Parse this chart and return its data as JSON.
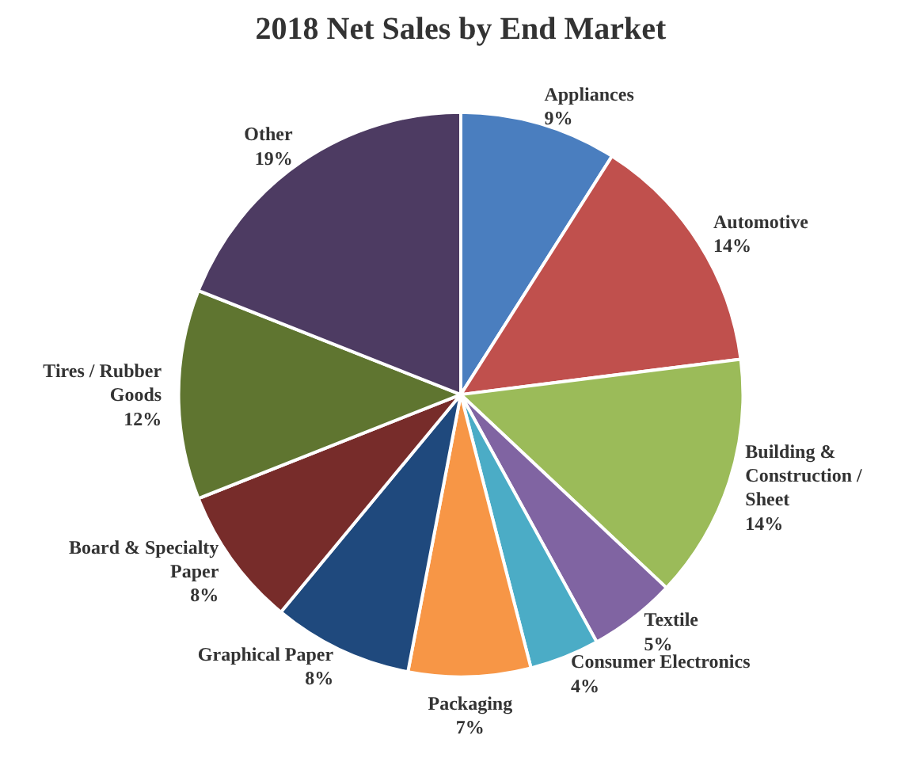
{
  "chart_data": {
    "type": "pie",
    "title": "2018 Net Sales by End Market",
    "categories": [
      "Appliances",
      "Automotive",
      "Building & Construction / Sheet",
      "Textile",
      "Consumer Electronics",
      "Packaging",
      "Graphical Paper",
      "Board & Specialty Paper",
      "Tires / Rubber Goods",
      "Other"
    ],
    "values": [
      9,
      14,
      14,
      5,
      4,
      7,
      8,
      8,
      12,
      19
    ],
    "colors": [
      "#4a7ebf",
      "#c0504d",
      "#9bbb59",
      "#8064a2",
      "#4bacc6",
      "#f79646",
      "#1f497d",
      "#772c2a",
      "#5f7530",
      "#4d3b62"
    ],
    "value_labels": [
      "9%",
      "14%",
      "14%",
      "5%",
      "4%",
      "7%",
      "8%",
      "8%",
      "12%",
      "19%"
    ]
  }
}
